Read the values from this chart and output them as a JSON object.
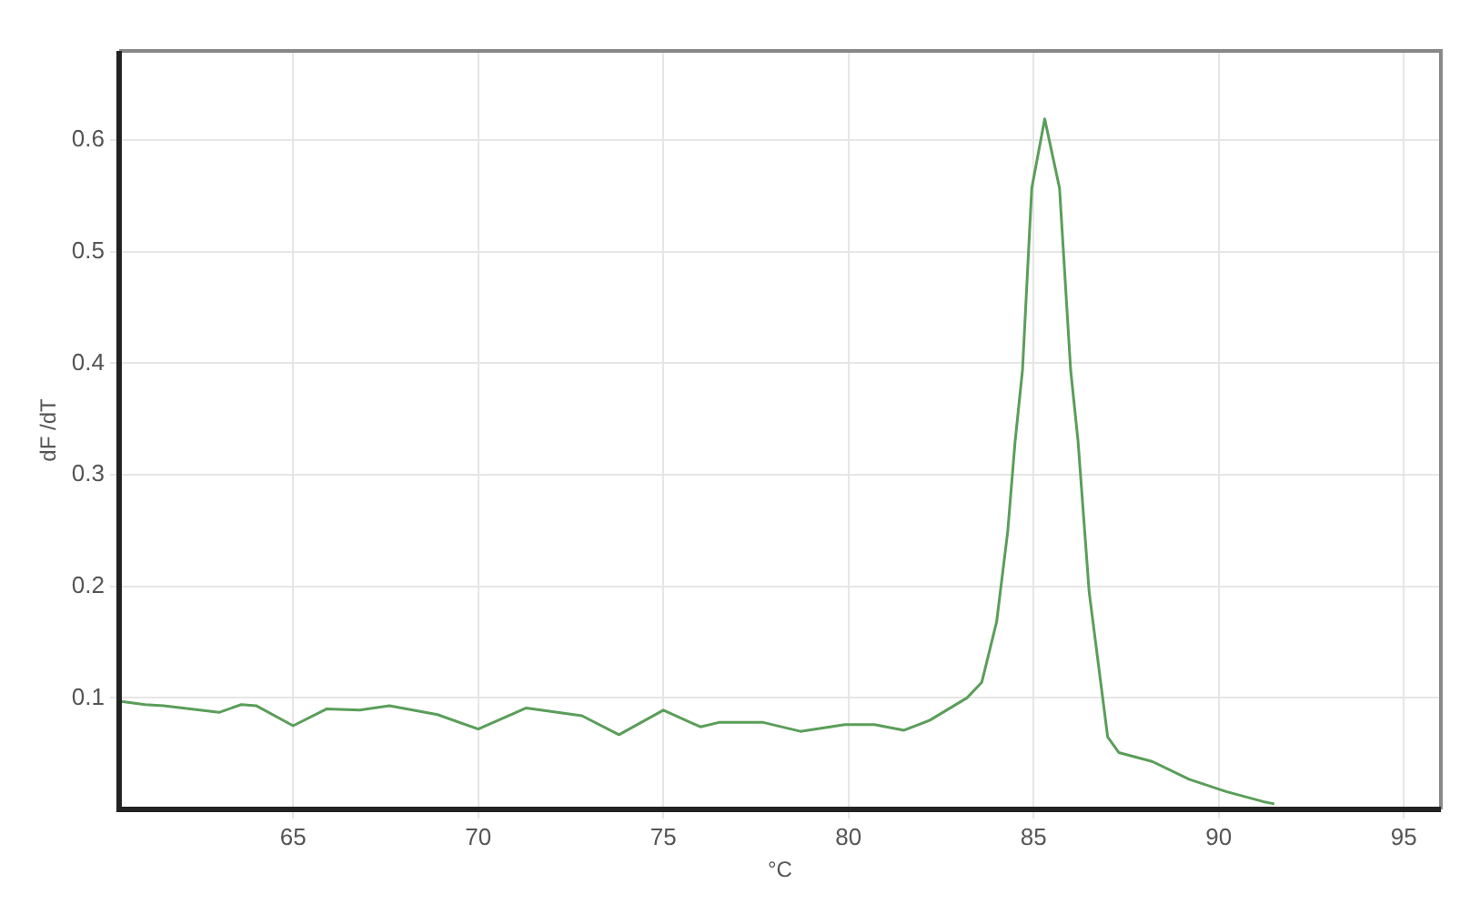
{
  "chart_data": {
    "type": "line",
    "xlabel": "°C",
    "ylabel": "dF /dT",
    "xlim": [
      60.3,
      96
    ],
    "xticks": [
      65,
      70,
      75,
      80,
      85,
      90,
      95
    ],
    "ylim": [
      0,
      0.68
    ],
    "yticks": [
      0.1,
      0.2,
      0.3,
      0.4,
      0.5,
      0.6
    ],
    "grid": true,
    "marker": "none",
    "line_style": "solid",
    "series": [
      {
        "color": "#5a9e5a",
        "x": [
          60.3,
          61.0,
          61.5,
          63.0,
          63.6,
          64.0,
          65.0,
          65.9,
          66.8,
          67.6,
          68.9,
          70.0,
          71.3,
          72.8,
          73.8,
          75.0,
          76.0,
          76.5,
          77.7,
          78.7,
          79.9,
          80.7,
          81.5,
          82.2,
          83.2,
          83.6,
          84.0,
          84.3,
          84.5,
          84.7,
          84.95,
          85.3,
          85.7,
          86.0,
          86.2,
          86.5,
          87.0,
          87.3,
          88.2,
          89.2,
          90.2,
          91.2,
          91.5
        ],
        "values": [
          0.097,
          0.094,
          0.093,
          0.087,
          0.094,
          0.093,
          0.075,
          0.09,
          0.089,
          0.093,
          0.085,
          0.072,
          0.091,
          0.084,
          0.067,
          0.089,
          0.074,
          0.078,
          0.078,
          0.07,
          0.076,
          0.076,
          0.071,
          0.08,
          0.1,
          0.114,
          0.168,
          0.249,
          0.33,
          0.394,
          0.557,
          0.619,
          0.557,
          0.394,
          0.33,
          0.195,
          0.065,
          0.051,
          0.043,
          0.027,
          0.016,
          0.007,
          0.005
        ]
      }
    ]
  }
}
